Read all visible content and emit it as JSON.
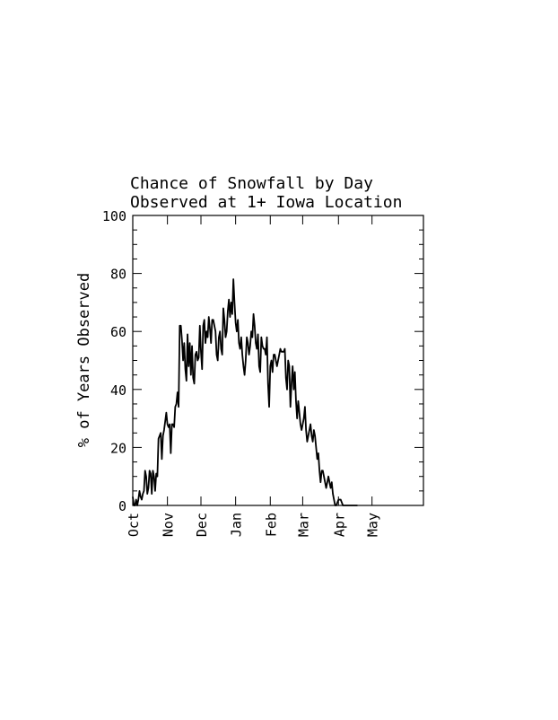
{
  "chart_data": {
    "type": "line",
    "title": "Chance of Snowfall by Day",
    "subtitle": "Observed at 1+ Iowa Location",
    "xlabel": "",
    "ylabel": "% of Years Observed",
    "ylim": [
      0,
      100
    ],
    "yticks": [
      0,
      20,
      40,
      60,
      80,
      100
    ],
    "xlim": [
      0,
      260
    ],
    "month_ticks": [
      {
        "label": "Oct",
        "day": 0
      },
      {
        "label": "Nov",
        "day": 31
      },
      {
        "label": "Dec",
        "day": 61
      },
      {
        "label": "Jan",
        "day": 92
      },
      {
        "label": "Feb",
        "day": 123
      },
      {
        "label": "Mar",
        "day": 152
      },
      {
        "label": "Apr",
        "day": 184
      },
      {
        "label": "May",
        "day": 214
      }
    ],
    "series": [
      {
        "values": [
          3,
          0,
          0,
          2,
          0,
          2,
          5,
          3,
          2,
          4,
          5,
          12,
          10,
          4,
          6,
          12,
          11,
          4,
          12,
          10,
          5,
          11,
          10,
          23,
          24,
          25,
          16,
          24,
          26,
          29,
          32,
          28,
          27,
          28,
          18,
          28,
          28,
          27,
          34,
          35,
          39,
          34,
          62,
          62,
          57,
          50,
          56,
          47,
          43,
          59,
          48,
          56,
          45,
          55,
          44,
          42,
          52,
          53,
          50,
          51,
          62,
          53,
          47,
          62,
          64,
          56,
          60,
          58,
          65,
          61,
          56,
          64,
          64,
          62,
          60,
          52,
          50,
          58,
          60,
          54,
          52,
          68,
          64,
          58,
          60,
          67,
          71,
          65,
          70,
          66,
          78,
          70,
          63,
          60,
          64,
          56,
          54,
          58,
          52,
          48,
          45,
          50,
          58,
          56,
          52,
          55,
          60,
          58,
          66,
          62,
          56,
          54,
          59,
          48,
          46,
          58,
          55,
          54,
          54,
          52,
          58,
          42,
          34,
          48,
          50,
          46,
          52,
          52,
          50,
          48,
          50,
          52,
          54,
          53,
          53,
          53,
          54,
          44,
          40,
          50,
          48,
          34,
          42,
          48,
          40,
          46,
          36,
          30,
          36,
          32,
          28,
          26,
          28,
          30,
          34,
          26,
          22,
          24,
          26,
          28,
          24,
          22,
          26,
          24,
          20,
          16,
          18,
          12,
          8,
          12,
          12,
          10,
          8,
          6,
          8,
          10,
          8,
          6,
          8,
          4,
          2,
          0,
          0,
          1,
          2,
          2,
          2,
          1,
          0,
          0,
          0,
          0,
          0,
          0,
          0,
          0,
          0,
          0,
          0,
          0,
          0,
          0
        ]
      }
    ]
  }
}
